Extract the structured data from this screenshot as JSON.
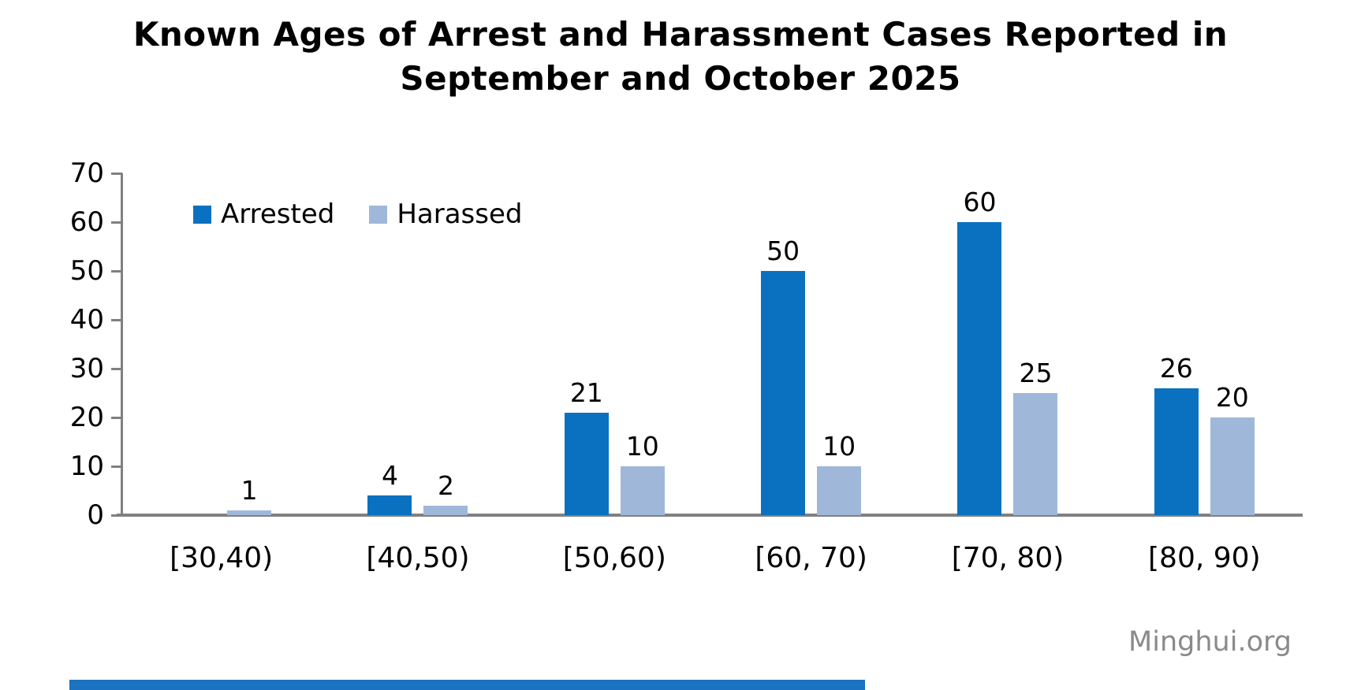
{
  "header": {
    "title_line1": "Known Ages of Arrest and Harassment Cases Reported in",
    "title_line2": "September and October 2025"
  },
  "watermark": "Minghui.org",
  "colors": {
    "arrested": "#0a71c0",
    "harassed": "#9fb8da",
    "axis": "#808080",
    "text": "#000000",
    "watermark": "#8a8a8a",
    "footer_bar": "#1b72c0",
    "background": "#ffffff"
  },
  "chart_data": {
    "type": "bar",
    "title": "Known Ages of Arrest and Harassment Cases Reported in September and October 2025",
    "categories": [
      "[30,40)",
      "[40,50)",
      "[50,60)",
      "[60, 70)",
      "[70, 80)",
      "[80, 90)"
    ],
    "series": [
      {
        "name": "Arrested",
        "color": "#0a71c0",
        "values": [
          0,
          4,
          21,
          50,
          60,
          26
        ],
        "data_labels": [
          "",
          "4",
          "21",
          "50",
          "60",
          "26"
        ]
      },
      {
        "name": "Harassed",
        "color": "#9fb8da",
        "values": [
          1,
          2,
          10,
          10,
          25,
          20
        ],
        "data_labels": [
          "1",
          "2",
          "10",
          "10",
          "25",
          "20"
        ]
      }
    ],
    "xlabel": "",
    "ylabel": "",
    "ylim": [
      0,
      70
    ],
    "yticks": [
      0,
      10,
      20,
      30,
      40,
      50,
      60,
      70
    ],
    "grid": false,
    "legend_position": "top-left-inside"
  }
}
